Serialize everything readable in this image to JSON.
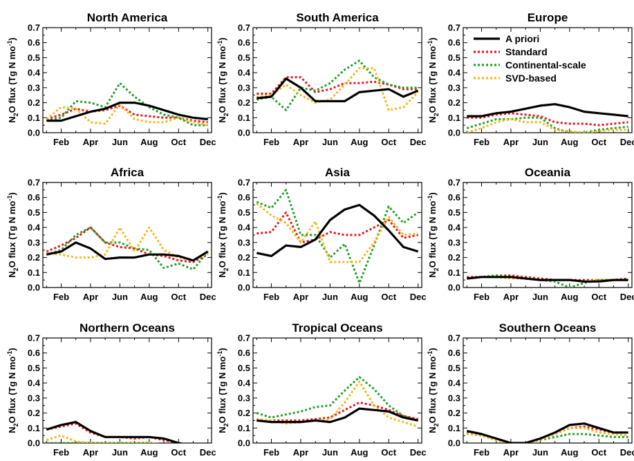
{
  "colors": {
    "apriori": "#000000",
    "standard": "#e8161b",
    "continental": "#22a127",
    "svd": "#f5b81d"
  },
  "legend": [
    "A priori",
    "Standard",
    "Continental-scale",
    "SVD-based"
  ],
  "chart_data": [
    {
      "type": "line",
      "title": "North America",
      "ylabel": "N2O flux (Tg N mo-1)",
      "months": [
        1,
        2,
        3,
        4,
        5,
        6,
        7,
        8,
        9,
        10,
        11,
        12
      ],
      "xticks": [
        "Feb",
        "Apr",
        "Jun",
        "Aug",
        "Oct",
        "Dec"
      ],
      "yticks": [
        "0.0",
        "0.1",
        "0.2",
        "0.3",
        "0.4",
        "0.5",
        "0.6",
        "0.7"
      ],
      "ylim": [
        0,
        0.7
      ],
      "series": [
        {
          "key": "apriori",
          "name": "A priori",
          "values": [
            0.08,
            0.08,
            0.11,
            0.14,
            0.16,
            0.2,
            0.2,
            0.18,
            0.15,
            0.12,
            0.1,
            0.09
          ]
        },
        {
          "key": "standard",
          "name": "Standard",
          "values": [
            0.09,
            0.12,
            0.16,
            0.14,
            0.15,
            0.18,
            0.12,
            0.11,
            0.1,
            0.1,
            0.08,
            0.07
          ]
        },
        {
          "key": "continental",
          "name": "Continental-scale",
          "values": [
            0.08,
            0.1,
            0.21,
            0.2,
            0.17,
            0.33,
            0.24,
            0.17,
            0.12,
            0.1,
            0.05,
            0.05
          ]
        },
        {
          "key": "svd",
          "name": "SVD-based",
          "values": [
            0.09,
            0.17,
            0.16,
            0.07,
            0.06,
            0.19,
            0.09,
            0.07,
            0.07,
            0.1,
            0.07,
            0.05
          ]
        }
      ]
    },
    {
      "type": "line",
      "title": "South America",
      "ylabel": "N2O flux (Tg N mo-1)",
      "months": [
        1,
        2,
        3,
        4,
        5,
        6,
        7,
        8,
        9,
        10,
        11,
        12
      ],
      "xticks": [
        "Feb",
        "Apr",
        "Jun",
        "Aug",
        "Oct",
        "Dec"
      ],
      "yticks": [
        "0.0",
        "0.1",
        "0.2",
        "0.3",
        "0.4",
        "0.5",
        "0.6",
        "0.7"
      ],
      "ylim": [
        0,
        0.7
      ],
      "series": [
        {
          "key": "apriori",
          "name": "A priori",
          "values": [
            0.23,
            0.24,
            0.36,
            0.3,
            0.21,
            0.21,
            0.21,
            0.27,
            0.28,
            0.29,
            0.24,
            0.28
          ]
        },
        {
          "key": "standard",
          "name": "Standard",
          "values": [
            0.26,
            0.26,
            0.37,
            0.37,
            0.27,
            0.29,
            0.33,
            0.33,
            0.34,
            0.32,
            0.29,
            0.29
          ]
        },
        {
          "key": "continental",
          "name": "Continental-scale",
          "values": [
            0.22,
            0.24,
            0.15,
            0.3,
            0.28,
            0.33,
            0.42,
            0.48,
            0.37,
            0.32,
            0.3,
            0.3
          ]
        },
        {
          "key": "svd",
          "name": "SVD-based",
          "values": [
            0.24,
            0.25,
            0.32,
            0.25,
            0.2,
            0.22,
            0.32,
            0.43,
            0.43,
            0.15,
            0.17,
            0.27
          ]
        }
      ]
    },
    {
      "type": "line",
      "title": "Europe",
      "ylabel": "N2O flux (Tg N mo-1)",
      "months": [
        1,
        2,
        3,
        4,
        5,
        6,
        7,
        8,
        9,
        10,
        11,
        12
      ],
      "xticks": [
        "Feb",
        "Apr",
        "Jun",
        "Aug",
        "Oct",
        "Dec"
      ],
      "yticks": [
        "0.0",
        "0.1",
        "0.2",
        "0.3",
        "0.4",
        "0.5",
        "0.6",
        "0.7"
      ],
      "ylim": [
        0,
        0.7
      ],
      "series": [
        {
          "key": "apriori",
          "name": "A priori",
          "values": [
            0.11,
            0.11,
            0.13,
            0.14,
            0.16,
            0.18,
            0.19,
            0.17,
            0.14,
            0.13,
            0.12,
            0.11
          ]
        },
        {
          "key": "standard",
          "name": "Standard",
          "values": [
            0.1,
            0.1,
            0.12,
            0.13,
            0.12,
            0.11,
            0.07,
            0.06,
            0.06,
            0.05,
            0.06,
            0.07
          ]
        },
        {
          "key": "continental",
          "name": "Continental-scale",
          "values": [
            0.03,
            0.06,
            0.09,
            0.09,
            0.1,
            0.1,
            0.03,
            0.0,
            0.0,
            0.02,
            0.03,
            0.04
          ]
        },
        {
          "key": "svd",
          "name": "SVD-based",
          "values": [
            0.0,
            0.03,
            0.07,
            0.09,
            0.07,
            0.07,
            0.02,
            0.01,
            0.0,
            0.01,
            0.02,
            0.02
          ]
        }
      ]
    },
    {
      "type": "line",
      "title": "Africa",
      "ylabel": "N2O flux (Tg N mo-1)",
      "months": [
        1,
        2,
        3,
        4,
        5,
        6,
        7,
        8,
        9,
        10,
        11,
        12
      ],
      "xticks": [
        "Feb",
        "Apr",
        "Jun",
        "Aug",
        "Oct",
        "Dec"
      ],
      "yticks": [
        "0.0",
        "0.1",
        "0.2",
        "0.3",
        "0.4",
        "0.5",
        "0.6",
        "0.7"
      ],
      "ylim": [
        0,
        0.7
      ],
      "series": [
        {
          "key": "apriori",
          "name": "A priori",
          "values": [
            0.22,
            0.24,
            0.3,
            0.26,
            0.19,
            0.2,
            0.2,
            0.22,
            0.22,
            0.21,
            0.18,
            0.24
          ]
        },
        {
          "key": "standard",
          "name": "Standard",
          "values": [
            0.24,
            0.28,
            0.33,
            0.4,
            0.3,
            0.27,
            0.26,
            0.22,
            0.21,
            0.18,
            0.17,
            0.22
          ]
        },
        {
          "key": "continental",
          "name": "Continental-scale",
          "values": [
            0.22,
            0.25,
            0.35,
            0.4,
            0.3,
            0.3,
            0.26,
            0.25,
            0.13,
            0.16,
            0.12,
            0.24
          ]
        },
        {
          "key": "svd",
          "name": "SVD-based",
          "values": [
            0.23,
            0.22,
            0.2,
            0.2,
            0.22,
            0.4,
            0.24,
            0.4,
            0.25,
            0.2,
            0.18,
            0.23
          ]
        }
      ]
    },
    {
      "type": "line",
      "title": "Asia",
      "ylabel": "N2O flux (Tg N mo-1)",
      "months": [
        1,
        2,
        3,
        4,
        5,
        6,
        7,
        8,
        9,
        10,
        11,
        12
      ],
      "xticks": [
        "Feb",
        "Apr",
        "Jun",
        "Aug",
        "Oct",
        "Dec"
      ],
      "yticks": [
        "0.0",
        "0.1",
        "0.2",
        "0.3",
        "0.4",
        "0.5",
        "0.6",
        "0.7"
      ],
      "ylim": [
        0,
        0.7
      ],
      "series": [
        {
          "key": "apriori",
          "name": "A priori",
          "values": [
            0.23,
            0.21,
            0.28,
            0.27,
            0.32,
            0.45,
            0.52,
            0.55,
            0.48,
            0.38,
            0.27,
            0.24
          ]
        },
        {
          "key": "standard",
          "name": "Standard",
          "values": [
            0.36,
            0.37,
            0.5,
            0.3,
            0.32,
            0.37,
            0.35,
            0.35,
            0.4,
            0.45,
            0.33,
            0.35
          ]
        },
        {
          "key": "continental",
          "name": "Continental-scale",
          "values": [
            0.57,
            0.53,
            0.65,
            0.35,
            0.35,
            0.2,
            0.29,
            0.03,
            0.28,
            0.54,
            0.43,
            0.5
          ]
        },
        {
          "key": "svd",
          "name": "SVD-based",
          "values": [
            0.56,
            0.48,
            0.43,
            0.3,
            0.44,
            0.17,
            0.17,
            0.17,
            0.3,
            0.47,
            0.35,
            0.36
          ]
        }
      ]
    },
    {
      "type": "line",
      "title": "Oceania",
      "ylabel": "N2O flux (Tg N mo-1)",
      "months": [
        1,
        2,
        3,
        4,
        5,
        6,
        7,
        8,
        9,
        10,
        11,
        12
      ],
      "xticks": [
        "Feb",
        "Apr",
        "Jun",
        "Aug",
        "Oct",
        "Dec"
      ],
      "yticks": [
        "0.0",
        "0.1",
        "0.2",
        "0.3",
        "0.4",
        "0.5",
        "0.6",
        "0.7"
      ],
      "ylim": [
        0,
        0.7
      ],
      "series": [
        {
          "key": "apriori",
          "name": "A priori",
          "values": [
            0.06,
            0.07,
            0.07,
            0.07,
            0.06,
            0.05,
            0.05,
            0.05,
            0.04,
            0.04,
            0.05,
            0.05
          ]
        },
        {
          "key": "standard",
          "name": "Standard",
          "values": [
            0.07,
            0.07,
            0.08,
            0.08,
            0.07,
            0.06,
            0.05,
            0.05,
            0.05,
            0.05,
            0.05,
            0.06
          ]
        },
        {
          "key": "continental",
          "name": "Continental-scale",
          "values": [
            0.06,
            0.07,
            0.08,
            0.07,
            0.06,
            0.05,
            0.04,
            0.0,
            0.03,
            0.05,
            0.05,
            0.05
          ]
        },
        {
          "key": "svd",
          "name": "SVD-based",
          "values": [
            0.06,
            0.07,
            0.07,
            0.06,
            0.06,
            0.05,
            0.05,
            0.05,
            0.04,
            0.05,
            0.05,
            0.05
          ]
        }
      ]
    },
    {
      "type": "line",
      "title": "Northern Oceans",
      "ylabel": "N2O flux (Tg N mo-1)",
      "months": [
        1,
        2,
        3,
        4,
        5,
        6,
        7,
        8,
        9,
        10,
        11,
        12
      ],
      "xticks": [
        "Feb",
        "Apr",
        "Jun",
        "Aug",
        "Oct",
        "Dec"
      ],
      "yticks": [
        "0.0",
        "0.1",
        "0.2",
        "0.3",
        "0.4",
        "0.5",
        "0.6",
        "0.7"
      ],
      "ylim": [
        0,
        0.7
      ],
      "series": [
        {
          "key": "apriori",
          "name": "A priori",
          "values": [
            0.09,
            0.12,
            0.14,
            0.08,
            0.04,
            0.04,
            0.04,
            0.04,
            0.03,
            0.0,
            -0.02,
            -0.01
          ]
        },
        {
          "key": "standard",
          "name": "Standard",
          "values": [
            0.09,
            0.11,
            0.13,
            0.07,
            0.04,
            0.04,
            0.03,
            0.04,
            0.02,
            0.0,
            -0.02,
            -0.01
          ]
        },
        {
          "key": "continental",
          "name": "Continental-scale",
          "values": [
            0.0,
            0.0,
            0.0,
            0.0,
            0.0,
            0.0,
            0.0,
            0.0,
            -0.01,
            -0.02,
            -0.02,
            -0.01
          ]
        },
        {
          "key": "svd",
          "name": "SVD-based",
          "values": [
            0.02,
            0.05,
            0.01,
            0.0,
            0.0,
            0.0,
            0.0,
            0.0,
            -0.01,
            -0.02,
            -0.02,
            -0.01
          ]
        }
      ]
    },
    {
      "type": "line",
      "title": "Tropical Oceans",
      "ylabel": "N2O flux (Tg N mo-1)",
      "months": [
        1,
        2,
        3,
        4,
        5,
        6,
        7,
        8,
        9,
        10,
        11,
        12
      ],
      "xticks": [
        "Feb",
        "Apr",
        "Jun",
        "Aug",
        "Oct",
        "Dec"
      ],
      "yticks": [
        "0.0",
        "0.1",
        "0.2",
        "0.3",
        "0.4",
        "0.5",
        "0.6",
        "0.7"
      ],
      "ylim": [
        0,
        0.7
      ],
      "series": [
        {
          "key": "apriori",
          "name": "A priori",
          "values": [
            0.15,
            0.14,
            0.14,
            0.14,
            0.15,
            0.14,
            0.17,
            0.23,
            0.22,
            0.21,
            0.17,
            0.15
          ]
        },
        {
          "key": "standard",
          "name": "Standard",
          "values": [
            0.15,
            0.15,
            0.15,
            0.15,
            0.16,
            0.17,
            0.22,
            0.27,
            0.25,
            0.22,
            0.18,
            0.16
          ]
        },
        {
          "key": "continental",
          "name": "Continental-scale",
          "values": [
            0.2,
            0.17,
            0.19,
            0.21,
            0.24,
            0.25,
            0.35,
            0.44,
            0.36,
            0.25,
            0.18,
            0.15
          ]
        },
        {
          "key": "svd",
          "name": "SVD-based",
          "values": [
            0.16,
            0.15,
            0.13,
            0.14,
            0.15,
            0.16,
            0.27,
            0.41,
            0.25,
            0.17,
            0.14,
            0.11
          ]
        }
      ]
    },
    {
      "type": "line",
      "title": "Southern Oceans",
      "ylabel": "N2O flux (Tg N mo-1)",
      "months": [
        1,
        2,
        3,
        4,
        5,
        6,
        7,
        8,
        9,
        10,
        11,
        12
      ],
      "xticks": [
        "Feb",
        "Apr",
        "Jun",
        "Aug",
        "Oct",
        "Dec"
      ],
      "yticks": [
        "0.0",
        "0.1",
        "0.2",
        "0.3",
        "0.4",
        "0.5",
        "0.6",
        "0.7"
      ],
      "ylim": [
        0,
        0.7
      ],
      "series": [
        {
          "key": "apriori",
          "name": "A priori",
          "values": [
            0.08,
            0.06,
            0.03,
            0.0,
            0.0,
            0.03,
            0.07,
            0.12,
            0.13,
            0.1,
            0.07,
            0.07
          ]
        },
        {
          "key": "standard",
          "name": "Standard",
          "values": [
            0.07,
            0.05,
            0.03,
            0.0,
            0.0,
            0.03,
            0.06,
            0.1,
            0.11,
            0.09,
            0.07,
            0.07
          ]
        },
        {
          "key": "continental",
          "name": "Continental-scale",
          "values": [
            0.07,
            0.05,
            0.02,
            0.0,
            0.0,
            0.02,
            0.04,
            0.06,
            0.06,
            0.05,
            0.04,
            0.04
          ]
        },
        {
          "key": "svd",
          "name": "SVD-based",
          "values": [
            0.06,
            0.05,
            0.02,
            0.0,
            0.0,
            0.02,
            0.06,
            0.1,
            0.1,
            0.07,
            0.06,
            0.05
          ]
        }
      ]
    }
  ]
}
